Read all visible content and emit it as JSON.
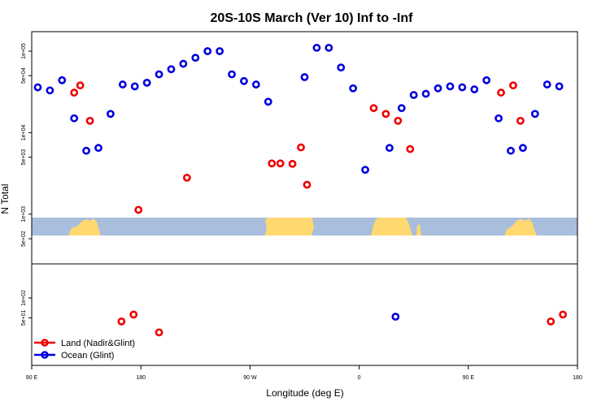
{
  "chart_data": {
    "type": "scatter",
    "title": "20S-10S March (Ver 10)   Inf to -Inf",
    "xlabel": "Longitude (deg E)",
    "ylabel": "N Total",
    "y_scale": "log",
    "x_tick_labels": [
      "90 E",
      "180",
      "90 W",
      "0",
      "90 E",
      "180"
    ],
    "upper_y_tick_labels": [
      "5e+02",
      "1e+03",
      "5e+03",
      "1e+04",
      "5e+04",
      "1e+05"
    ],
    "lower_y_tick_labels": [
      "5e+01",
      "1e+02"
    ],
    "colors": {
      "land": "#ee0000",
      "ocean": "#0000dd",
      "map_ocean": "#a8bedc",
      "map_land": "#ffd870"
    },
    "legend": {
      "position": "bottom-left",
      "entries": [
        {
          "label": "Land (Nadir&Glint)",
          "series": "land"
        },
        {
          "label": "Ocean (Glint)",
          "series": "ocean"
        }
      ]
    },
    "series": [
      {
        "key": "ocean",
        "points": [
          [
            95,
            36000
          ],
          [
            105,
            33000
          ],
          [
            115,
            44000
          ],
          [
            125,
            15000
          ],
          [
            135,
            6000
          ],
          [
            145,
            6500
          ],
          [
            155,
            17000
          ],
          [
            165,
            39000
          ],
          [
            175,
            37000
          ],
          [
            185,
            41000
          ],
          [
            195,
            52000
          ],
          [
            205,
            60000
          ],
          [
            215,
            70000
          ],
          [
            225,
            83000
          ],
          [
            235,
            100000
          ],
          [
            245,
            100000
          ],
          [
            255,
            52000
          ],
          [
            265,
            43000
          ],
          [
            275,
            39000
          ],
          [
            285,
            24000
          ],
          [
            315,
            48000
          ],
          [
            325,
            110000
          ],
          [
            335,
            110000
          ],
          [
            345,
            63000
          ],
          [
            355,
            35000
          ],
          [
            365,
            3500
          ],
          [
            385,
            6500
          ],
          [
            395,
            20000
          ],
          [
            405,
            29000
          ],
          [
            415,
            30000
          ],
          [
            425,
            35000
          ],
          [
            435,
            37000
          ],
          [
            445,
            36000
          ],
          [
            455,
            34000
          ],
          [
            465,
            44000
          ],
          [
            475,
            15000
          ],
          [
            485,
            6000
          ],
          [
            495,
            6500
          ],
          [
            505,
            17000
          ],
          [
            515,
            39000
          ],
          [
            525,
            37000
          ],
          [
            390,
            52
          ]
        ]
      },
      {
        "key": "land",
        "points": [
          [
            125,
            31000
          ],
          [
            130,
            38000
          ],
          [
            138,
            14000
          ],
          [
            178,
            1130
          ],
          [
            218,
            2800
          ],
          [
            288,
            4200
          ],
          [
            295,
            4200
          ],
          [
            305,
            4150
          ],
          [
            312,
            6600
          ],
          [
            317,
            2300
          ],
          [
            372,
            20000
          ],
          [
            382,
            17000
          ],
          [
            392,
            14000
          ],
          [
            402,
            6300
          ],
          [
            477,
            31000
          ],
          [
            487,
            38000
          ],
          [
            493,
            14000
          ],
          [
            164,
            44
          ],
          [
            174,
            56
          ],
          [
            195,
            30
          ],
          [
            518,
            44
          ],
          [
            528,
            56
          ]
        ]
      }
    ]
  }
}
